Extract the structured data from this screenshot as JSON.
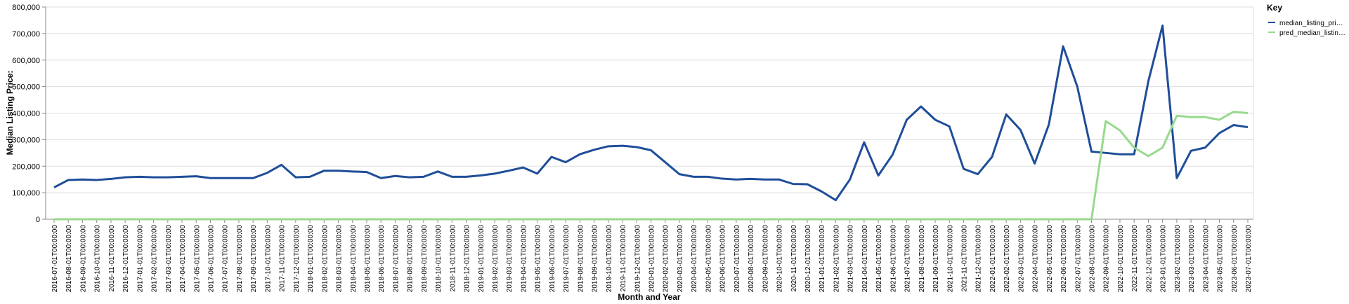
{
  "chart_data": {
    "type": "line",
    "x_label": "Month and Year",
    "y_label": "Median Listing Price:",
    "legend_title": "Key",
    "categories": [
      "2016-07-01T00:00:00",
      "2016-08-01T00:00:00",
      "2016-09-01T00:00:00",
      "2016-10-01T00:00:00",
      "2016-11-01T00:00:00",
      "2016-12-01T00:00:00",
      "2017-01-01T00:00:00",
      "2017-02-01T00:00:00",
      "2017-03-01T00:00:00",
      "2017-04-01T00:00:00",
      "2017-05-01T00:00:00",
      "2017-06-01T00:00:00",
      "2017-07-01T00:00:00",
      "2017-08-01T00:00:00",
      "2017-09-01T00:00:00",
      "2017-10-01T00:00:00",
      "2017-11-01T00:00:00",
      "2017-12-01T00:00:00",
      "2018-01-01T00:00:00",
      "2018-02-01T00:00:00",
      "2018-03-01T00:00:00",
      "2018-04-01T00:00:00",
      "2018-05-01T00:00:00",
      "2018-06-01T00:00:00",
      "2018-07-01T00:00:00",
      "2018-08-01T00:00:00",
      "2018-09-01T00:00:00",
      "2018-10-01T00:00:00",
      "2018-11-01T00:00:00",
      "2018-12-01T00:00:00",
      "2019-01-01T00:00:00",
      "2019-02-01T00:00:00",
      "2019-03-01T00:00:00",
      "2019-04-01T00:00:00",
      "2019-05-01T00:00:00",
      "2019-06-01T00:00:00",
      "2019-07-01T00:00:00",
      "2019-08-01T00:00:00",
      "2019-09-01T00:00:00",
      "2019-10-01T00:00:00",
      "2019-11-01T00:00:00",
      "2019-12-01T00:00:00",
      "2020-01-01T00:00:00",
      "2020-02-01T00:00:00",
      "2020-03-01T00:00:00",
      "2020-04-01T00:00:00",
      "2020-05-01T00:00:00",
      "2020-06-01T00:00:00",
      "2020-07-01T00:00:00",
      "2020-08-01T00:00:00",
      "2020-09-01T00:00:00",
      "2020-10-01T00:00:00",
      "2020-11-01T00:00:00",
      "2020-12-01T00:00:00",
      "2021-01-01T00:00:00",
      "2021-02-01T00:00:00",
      "2021-03-01T00:00:00",
      "2021-04-01T00:00:00",
      "2021-05-01T00:00:00",
      "2021-06-01T00:00:00",
      "2021-07-01T00:00:00",
      "2021-08-01T00:00:00",
      "2021-09-01T00:00:00",
      "2021-10-01T00:00:00",
      "2021-11-01T00:00:00",
      "2021-12-01T00:00:00",
      "2022-01-01T00:00:00",
      "2022-02-01T00:00:00",
      "2022-03-01T00:00:00",
      "2022-04-01T00:00:00",
      "2022-05-01T00:00:00",
      "2022-06-01T00:00:00",
      "2022-07-01T00:00:00",
      "2022-08-01T00:00:00",
      "2022-09-01T00:00:00",
      "2022-10-01T00:00:00",
      "2022-11-01T00:00:00",
      "2022-12-01T00:00:00",
      "2023-01-01T00:00:00",
      "2023-02-01T00:00:00",
      "2023-03-01T00:00:00",
      "2023-04-01T00:00:00",
      "2023-05-01T00:00:00",
      "2023-06-01T00:00:00",
      "2023-07-01T00:00:00"
    ],
    "series": [
      {
        "name": "median_listing_pri…",
        "color": "#1f4e99",
        "values": [
          120000,
          148000,
          150000,
          148000,
          152000,
          158000,
          160000,
          158000,
          158000,
          160000,
          162000,
          155000,
          155000,
          155000,
          155000,
          175000,
          205000,
          158000,
          160000,
          183000,
          183000,
          180000,
          178000,
          155000,
          163000,
          158000,
          160000,
          180000,
          160000,
          160000,
          165000,
          172000,
          183000,
          195000,
          172000,
          235000,
          215000,
          245000,
          262000,
          275000,
          277000,
          272000,
          260000,
          215000,
          170000,
          160000,
          160000,
          153000,
          150000,
          152000,
          150000,
          150000,
          133000,
          132000,
          105000,
          72000,
          150000,
          290000,
          165000,
          243000,
          375000,
          425000,
          375000,
          350000,
          190000,
          170000,
          235000,
          395000,
          337000,
          210000,
          357000,
          652000,
          500000,
          255000,
          250000,
          245000,
          245000,
          520000,
          730000,
          155000,
          258000,
          270000,
          325000,
          355000,
          347000
        ]
      },
      {
        "name": "pred_median_listin…",
        "color": "#98d98e",
        "values": [
          0,
          0,
          0,
          0,
          0,
          0,
          0,
          0,
          0,
          0,
          0,
          0,
          0,
          0,
          0,
          0,
          0,
          0,
          0,
          0,
          0,
          0,
          0,
          0,
          0,
          0,
          0,
          0,
          0,
          0,
          0,
          0,
          0,
          0,
          0,
          0,
          0,
          0,
          0,
          0,
          0,
          0,
          0,
          0,
          0,
          0,
          0,
          0,
          0,
          0,
          0,
          0,
          0,
          0,
          0,
          0,
          0,
          0,
          0,
          0,
          0,
          0,
          0,
          0,
          0,
          0,
          0,
          0,
          0,
          0,
          0,
          0,
          0,
          0,
          370000,
          335000,
          270000,
          238000,
          270000,
          390000,
          385000,
          385000,
          375000,
          405000,
          400000
        ]
      }
    ],
    "ylim": [
      0,
      800000
    ],
    "yticks": [
      0,
      {
        "value": 100000,
        "label": "100,000"
      },
      {
        "value": 200000,
        "label": "200,000"
      },
      {
        "value": 300000,
        "label": "300,000"
      },
      {
        "value": 400000,
        "label": "400,000"
      },
      {
        "value": 500000,
        "label": "500,000"
      },
      {
        "value": 600000,
        "label": "600,000"
      },
      {
        "value": 700000,
        "label": "700,000"
      },
      {
        "value": 800000,
        "label": "800,000"
      }
    ],
    "grid": true
  }
}
